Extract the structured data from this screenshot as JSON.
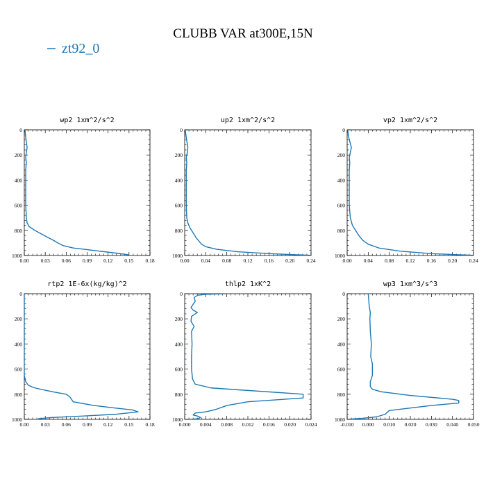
{
  "figure": {
    "title": "CLUBB VAR at300E,15N",
    "legend_label": "zt92_0",
    "line_color": "#1f77b4"
  },
  "chart_data": [
    {
      "type": "line",
      "title": "wp2  1xm^2/s^2",
      "xlim": [
        0,
        0.18
      ],
      "ylim": [
        1000,
        0
      ],
      "xticks": [
        "0.00",
        "0.03",
        "0.06",
        "0.09",
        "0.12",
        "0.15",
        "0.18"
      ],
      "yticks": [
        "0",
        "200",
        "400",
        "600",
        "800",
        "1000"
      ],
      "series": [
        {
          "x": [
            0.001,
            0.002,
            0.004,
            0.003,
            0.002,
            0.003,
            0.002,
            0.002,
            0.002,
            0.002,
            0.003,
            0.004,
            0.007,
            0.015,
            0.025,
            0.035,
            0.042,
            0.048,
            0.055,
            0.07,
            0.1,
            0.13,
            0.15
          ],
          "y": [
            0,
            60,
            140,
            180,
            220,
            260,
            320,
            400,
            500,
            600,
            700,
            740,
            770,
            800,
            830,
            860,
            880,
            900,
            920,
            940,
            960,
            980,
            995
          ]
        }
      ]
    },
    {
      "type": "line",
      "title": "up2  1xm^2/s^2",
      "xlim": [
        0,
        0.24
      ],
      "ylim": [
        1000,
        0
      ],
      "xticks": [
        "0.00",
        "0.04",
        "0.08",
        "0.12",
        "0.16",
        "0.20",
        "0.24"
      ],
      "yticks": [
        "0",
        "200",
        "400",
        "600",
        "800",
        "1000"
      ],
      "series": [
        {
          "x": [
            0.001,
            0.003,
            0.006,
            0.005,
            0.003,
            0.004,
            0.003,
            0.003,
            0.003,
            0.003,
            0.004,
            0.006,
            0.01,
            0.016,
            0.022,
            0.028,
            0.032,
            0.04,
            0.06,
            0.1,
            0.16,
            0.2,
            0.24
          ],
          "y": [
            0,
            60,
            140,
            180,
            220,
            260,
            320,
            400,
            500,
            600,
            700,
            740,
            780,
            820,
            860,
            890,
            910,
            930,
            950,
            970,
            985,
            992,
            998
          ]
        }
      ]
    },
    {
      "type": "line",
      "title": "vp2  1xm^2/s^2",
      "xlim": [
        0,
        0.24
      ],
      "ylim": [
        1000,
        0
      ],
      "xticks": [
        "0.00",
        "0.04",
        "0.08",
        "0.12",
        "0.16",
        "0.20",
        "0.24"
      ],
      "yticks": [
        "0",
        "200",
        "400",
        "600",
        "800",
        "1000"
      ],
      "series": [
        {
          "x": [
            0.001,
            0.003,
            0.008,
            0.006,
            0.004,
            0.005,
            0.004,
            0.004,
            0.004,
            0.004,
            0.006,
            0.01,
            0.016,
            0.022,
            0.03,
            0.04,
            0.06,
            0.1,
            0.16,
            0.2,
            0.24
          ],
          "y": [
            0,
            60,
            140,
            180,
            220,
            260,
            320,
            400,
            500,
            600,
            700,
            760,
            800,
            840,
            880,
            910,
            940,
            965,
            985,
            992,
            998
          ]
        }
      ]
    },
    {
      "type": "line",
      "title": "rtp2  1E-6x(kg/kg)^2",
      "xlim": [
        0,
        0.18
      ],
      "ylim": [
        1000,
        0
      ],
      "xticks": [
        "0.00",
        "0.03",
        "0.06",
        "0.09",
        "0.12",
        "0.15",
        "0.18"
      ],
      "yticks": [
        "0",
        "200",
        "400",
        "600",
        "800",
        "1000"
      ],
      "series": [
        {
          "x": [
            0.0,
            0.0,
            0.0,
            0.0,
            0.002,
            0.006,
            0.015,
            0.04,
            0.06,
            0.065,
            0.07,
            0.1,
            0.13,
            0.155,
            0.163,
            0.13,
            0.08,
            0.04,
            0.02
          ],
          "y": [
            0,
            200,
            400,
            650,
            700,
            730,
            750,
            780,
            800,
            820,
            860,
            890,
            910,
            925,
            940,
            960,
            975,
            985,
            995
          ]
        }
      ]
    },
    {
      "type": "line",
      "title": "thlp2  1xK^2",
      "xlim": [
        0,
        0.024
      ],
      "ylim": [
        1000,
        0
      ],
      "xticks": [
        "0.000",
        "0.004",
        "0.008",
        "0.012",
        "0.016",
        "0.020",
        "0.024"
      ],
      "yticks": [
        "0",
        "200",
        "400",
        "600",
        "800",
        "1000"
      ],
      "series": [
        {
          "x": [
            0.008,
            0.004,
            0.0025,
            0.0018,
            0.002,
            0.0012,
            0.0016,
            0.0024,
            0.0013,
            0.0012,
            0.0018,
            0.0013,
            0.0014,
            0.0013,
            0.0013,
            0.0015,
            0.002,
            0.005,
            0.012,
            0.0225,
            0.0225,
            0.012,
            0.008,
            0.006,
            0.004,
            0.002,
            0.0016,
            0.0025,
            0.003,
            0.0025,
            0.001
          ],
          "y": [
            0,
            5,
            12,
            30,
            60,
            110,
            130,
            150,
            180,
            220,
            260,
            300,
            400,
            500,
            600,
            680,
            720,
            750,
            770,
            800,
            830,
            860,
            890,
            920,
            940,
            950,
            965,
            975,
            985,
            995,
            1000
          ]
        }
      ]
    },
    {
      "type": "line",
      "title": "wp3  1xm^3/s^3",
      "xlim": [
        -0.01,
        0.05
      ],
      "ylim": [
        1000,
        0
      ],
      "xticks": [
        "-0.010",
        "0.000",
        "0.010",
        "0.020",
        "0.030",
        "0.040",
        "0.050"
      ],
      "yticks": [
        "0",
        "200",
        "400",
        "600",
        "800",
        "1000"
      ],
      "series": [
        {
          "x": [
            0.0,
            0.0005,
            0.001,
            0.0008,
            0.001,
            0.0015,
            0.0012,
            0.002,
            0.002,
            0.001,
            0.001,
            0.002,
            0.006,
            0.02,
            0.04,
            0.043,
            0.043,
            0.03,
            0.02,
            0.01,
            0.008,
            0.004,
            -0.003,
            -0.009
          ],
          "y": [
            0,
            100,
            150,
            200,
            300,
            400,
            500,
            560,
            650,
            700,
            740,
            760,
            780,
            810,
            840,
            850,
            870,
            890,
            910,
            930,
            960,
            980,
            992,
            998
          ]
        }
      ]
    }
  ]
}
